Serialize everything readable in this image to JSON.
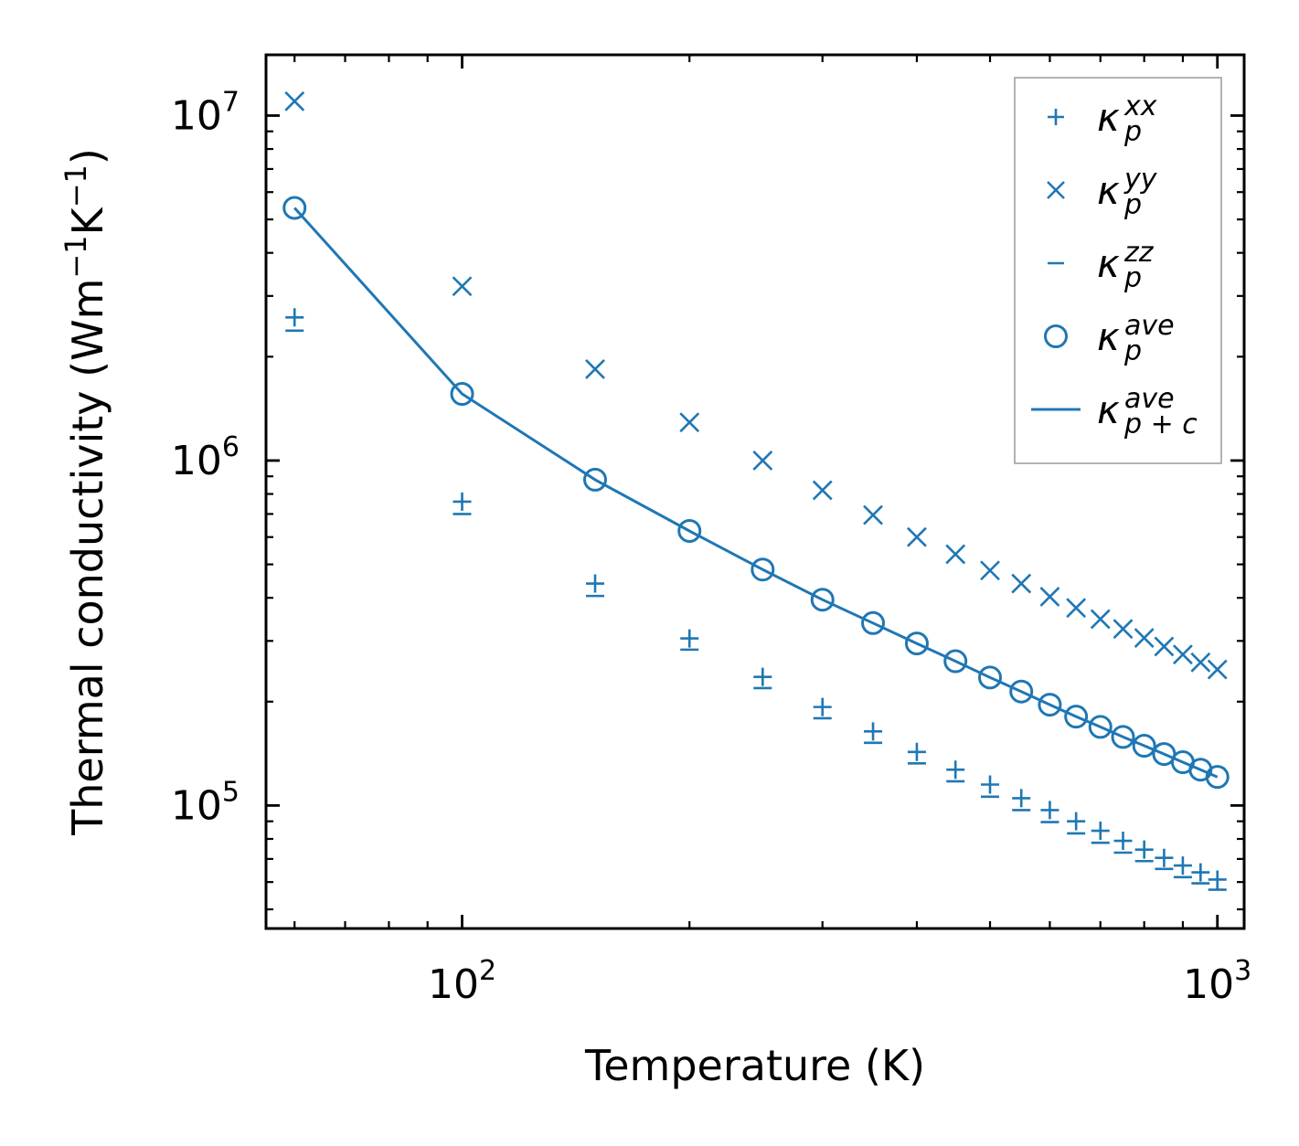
{
  "chart_data": {
    "type": "scatter",
    "xscale": "log",
    "yscale": "log",
    "xlim": [
      55,
      1085
    ],
    "ylim": [
      44000,
      15000000
    ],
    "xlabel": "Temperature (K)",
    "ylabel": {
      "main": "Thermal conductivity (Wm",
      "exp1": "−1",
      "mid": "K",
      "exp2": "−1",
      "end": ")"
    },
    "x_ticks": [
      {
        "value": 100,
        "base": "10",
        "exp": "2"
      },
      {
        "value": 1000,
        "base": "10",
        "exp": "3"
      }
    ],
    "y_ticks": [
      {
        "value": 100000,
        "base": "10",
        "exp": "5"
      },
      {
        "value": 1000000,
        "base": "10",
        "exp": "6"
      },
      {
        "value": 10000000,
        "base": "10",
        "exp": "7"
      }
    ],
    "color": "#1f77b4",
    "x": [
      60,
      100,
      150,
      200,
      250,
      300,
      350,
      400,
      450,
      500,
      550,
      600,
      650,
      700,
      750,
      800,
      850,
      900,
      950,
      1000
    ],
    "series": [
      {
        "name": "kappa_p_xx",
        "marker": "plus",
        "label_base": "κ",
        "label_sub": "p",
        "label_sup": "xx",
        "values": [
          2600000,
          760000,
          440000,
          305000,
          236000,
          193000,
          164000,
          143000,
          127000,
          115000,
          105000,
          97000,
          90000,
          84500,
          79000,
          74500,
          70500,
          67000,
          64000,
          61000
        ]
      },
      {
        "name": "kappa_p_yy",
        "marker": "x",
        "label_base": "κ",
        "label_sub": "p",
        "label_sup": "yy",
        "values": [
          11000000,
          3200000,
          1840000,
          1290000,
          1000000,
          820000,
          695000,
          600000,
          535000,
          480000,
          440000,
          403000,
          374000,
          347000,
          325000,
          306000,
          289000,
          274000,
          260000,
          248000
        ]
      },
      {
        "name": "kappa_p_zz",
        "marker": "minus",
        "label_base": "κ",
        "label_sub": "p",
        "label_sup": "zz",
        "values": [
          2380000,
          700000,
          405000,
          283000,
          219000,
          179000,
          152000,
          132500,
          117500,
          106000,
          97000,
          89500,
          83000,
          78000,
          73000,
          69000,
          65500,
          62000,
          59500,
          57000
        ]
      },
      {
        "name": "kappa_p_ave",
        "marker": "circle",
        "label_base": "κ",
        "label_sub": "p",
        "label_sup": "ave",
        "values": [
          5400000,
          1560000,
          880000,
          625000,
          483000,
          395000,
          338000,
          295000,
          262000,
          235000,
          214000,
          196000,
          181000,
          169000,
          158000,
          149000,
          141000,
          133500,
          127000,
          121000
        ]
      },
      {
        "name": "kappa_p+c_ave",
        "marker": "line",
        "label_base": "κ",
        "label_sub": "p + c",
        "label_sup": "ave",
        "values": [
          5400000,
          1560000,
          880000,
          625000,
          483000,
          395000,
          338000,
          295000,
          262000,
          235000,
          214000,
          196000,
          181000,
          169000,
          158000,
          149000,
          141000,
          133500,
          127000,
          121000
        ]
      }
    ],
    "legend_position": "upper-right"
  }
}
